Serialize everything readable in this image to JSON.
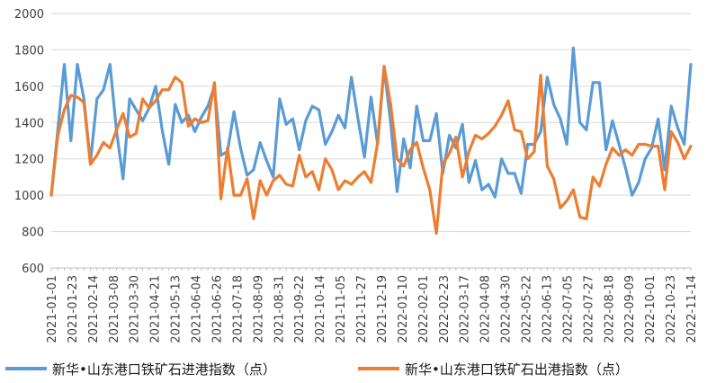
{
  "chart_data": {
    "type": "line",
    "title": "",
    "xlabel": "",
    "ylabel": "",
    "ylim": [
      600,
      2000
    ],
    "yticks": [
      600,
      800,
      1000,
      1200,
      1400,
      1600,
      1800,
      2000
    ],
    "grid": "horizontal",
    "legend_position": "bottom",
    "x_tick_labels": [
      "2021-01-01",
      "2021-01-23",
      "2021-02-14",
      "2021-03-08",
      "2021-03-30",
      "2021-04-21",
      "2021-05-13",
      "2021-06-04",
      "2021-06-26",
      "2021-07-18",
      "2021-08-09",
      "2021-08-31",
      "2021-09-22",
      "2021-10-14",
      "2021-11-05",
      "2021-11-27",
      "2021-12-19",
      "2022-01-10",
      "2022-02-01",
      "2022-02-23",
      "2022-03-17",
      "2022-04-08",
      "2022-04-30",
      "2022-05-22",
      "2022-06-13",
      "2022-07-05",
      "2022-07-27",
      "2022-08-18",
      "2022-09-09",
      "2022-10-01",
      "2022-10-23",
      "2022-11-14"
    ],
    "series": [
      {
        "name": "新华•山东港口铁矿石进港指数（点）",
        "color": "#5b9bd5",
        "values": [
          1000,
          1360,
          1720,
          1300,
          1720,
          1530,
          1180,
          1530,
          1580,
          1720,
          1350,
          1090,
          1530,
          1470,
          1410,
          1480,
          1600,
          1360,
          1170,
          1500,
          1400,
          1440,
          1350,
          1430,
          1490,
          1600,
          1220,
          1240,
          1460,
          1260,
          1110,
          1140,
          1290,
          1190,
          1100,
          1530,
          1390,
          1420,
          1250,
          1410,
          1490,
          1470,
          1280,
          1350,
          1440,
          1370,
          1650,
          1420,
          1210,
          1540,
          1280,
          1700,
          1400,
          1020,
          1310,
          1150,
          1490,
          1300,
          1300,
          1450,
          1120,
          1330,
          1260,
          1390,
          1070,
          1190,
          1030,
          1060,
          990,
          1200,
          1120,
          1120,
          1010,
          1280,
          1280,
          1350,
          1650,
          1500,
          1420,
          1280,
          1810,
          1400,
          1360,
          1620,
          1620,
          1250,
          1410,
          1280,
          1150,
          1000,
          1070,
          1200,
          1260,
          1420,
          1140,
          1490,
          1370,
          1280,
          1720
        ]
      },
      {
        "name": "新华•山东港口铁矿石出港指数（点）",
        "color": "#ed7d31",
        "values": [
          1000,
          1330,
          1470,
          1550,
          1540,
          1510,
          1170,
          1220,
          1290,
          1260,
          1360,
          1450,
          1320,
          1340,
          1530,
          1480,
          1520,
          1580,
          1580,
          1650,
          1620,
          1380,
          1420,
          1400,
          1410,
          1620,
          980,
          1260,
          1000,
          1000,
          1090,
          870,
          1080,
          1000,
          1080,
          1110,
          1060,
          1050,
          1220,
          1100,
          1130,
          1030,
          1200,
          1140,
          1030,
          1080,
          1060,
          1100,
          1130,
          1070,
          1290,
          1710,
          1500,
          1200,
          1160,
          1250,
          1290,
          1150,
          1030,
          790,
          1170,
          1230,
          1320,
          1100,
          1240,
          1330,
          1310,
          1340,
          1380,
          1440,
          1520,
          1360,
          1350,
          1200,
          1240,
          1660,
          1160,
          1090,
          930,
          970,
          1030,
          880,
          870,
          1100,
          1050,
          1170,
          1260,
          1220,
          1250,
          1220,
          1280,
          1280,
          1270,
          1270,
          1030,
          1350,
          1290,
          1200,
          1270
        ]
      }
    ]
  }
}
